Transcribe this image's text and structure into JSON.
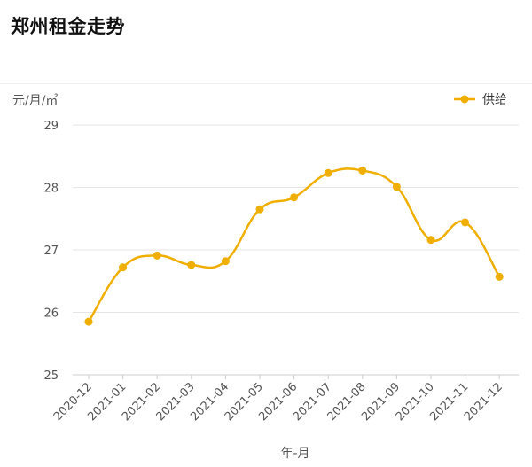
{
  "title": "郑州租金走势",
  "chart_data": {
    "type": "line",
    "categories": [
      "2020-12",
      "2021-01",
      "2021-02",
      "2021-03",
      "2021-04",
      "2021-05",
      "2021-06",
      "2021-07",
      "2021-08",
      "2021-09",
      "2021-10",
      "2021-11",
      "2021-12"
    ],
    "series": [
      {
        "name": "供给",
        "color": "#f0ae00",
        "values": [
          25.85,
          26.72,
          26.91,
          26.76,
          26.82,
          27.65,
          27.84,
          28.23,
          28.27,
          28.01,
          27.16,
          27.44,
          26.57
        ]
      }
    ],
    "xlabel": "年-月",
    "ylabel": "元/月/㎡",
    "ylim": [
      25,
      29
    ],
    "yticks": [
      25,
      26,
      27,
      28,
      29
    ],
    "grid": true,
    "smooth": true,
    "legend_position": "top-right"
  }
}
